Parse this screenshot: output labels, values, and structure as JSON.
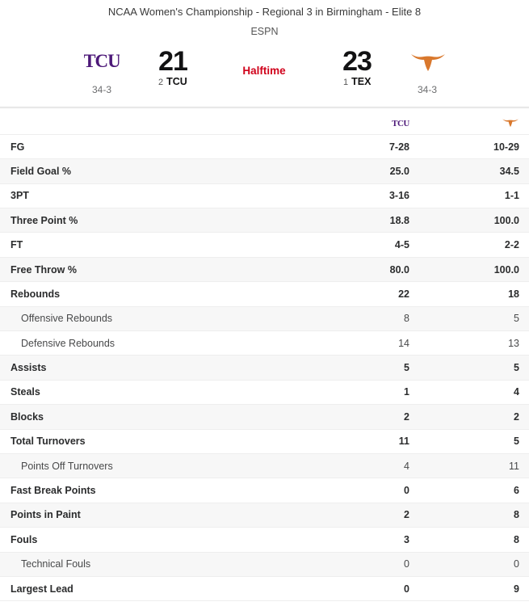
{
  "game": {
    "event": "NCAA Women's Championship - Regional 3 in Birmingham - Elite 8",
    "network": "ESPN",
    "status": "Halftime"
  },
  "away": {
    "abbr": "TCU",
    "seed": "2",
    "score": "21",
    "record": "34-3",
    "color": "#4d1979"
  },
  "home": {
    "abbr": "TEX",
    "seed": "1",
    "score": "23",
    "record": "34-3",
    "color": "#d9782d"
  },
  "stats": [
    {
      "label": "FG",
      "away": "7-28",
      "home": "10-29",
      "type": "main"
    },
    {
      "label": "Field Goal %",
      "away": "25.0",
      "home": "34.5",
      "type": "main"
    },
    {
      "label": "3PT",
      "away": "3-16",
      "home": "1-1",
      "type": "main"
    },
    {
      "label": "Three Point %",
      "away": "18.8",
      "home": "100.0",
      "type": "main"
    },
    {
      "label": "FT",
      "away": "4-5",
      "home": "2-2",
      "type": "main"
    },
    {
      "label": "Free Throw %",
      "away": "80.0",
      "home": "100.0",
      "type": "main"
    },
    {
      "label": "Rebounds",
      "away": "22",
      "home": "18",
      "type": "main"
    },
    {
      "label": "Offensive Rebounds",
      "away": "8",
      "home": "5",
      "type": "sub"
    },
    {
      "label": "Defensive Rebounds",
      "away": "14",
      "home": "13",
      "type": "sub"
    },
    {
      "label": "Assists",
      "away": "5",
      "home": "5",
      "type": "main"
    },
    {
      "label": "Steals",
      "away": "1",
      "home": "4",
      "type": "main"
    },
    {
      "label": "Blocks",
      "away": "2",
      "home": "2",
      "type": "main"
    },
    {
      "label": "Total Turnovers",
      "away": "11",
      "home": "5",
      "type": "main"
    },
    {
      "label": "Points Off Turnovers",
      "away": "4",
      "home": "11",
      "type": "sub"
    },
    {
      "label": "Fast Break Points",
      "away": "0",
      "home": "6",
      "type": "main"
    },
    {
      "label": "Points in Paint",
      "away": "2",
      "home": "8",
      "type": "main"
    },
    {
      "label": "Fouls",
      "away": "3",
      "home": "8",
      "type": "main"
    },
    {
      "label": "Technical Fouls",
      "away": "0",
      "home": "0",
      "type": "sub"
    },
    {
      "label": "Largest Lead",
      "away": "0",
      "home": "9",
      "type": "main"
    }
  ],
  "icons": {
    "away_logo": "tcu-logo-icon",
    "home_logo": "longhorn-logo-icon"
  }
}
